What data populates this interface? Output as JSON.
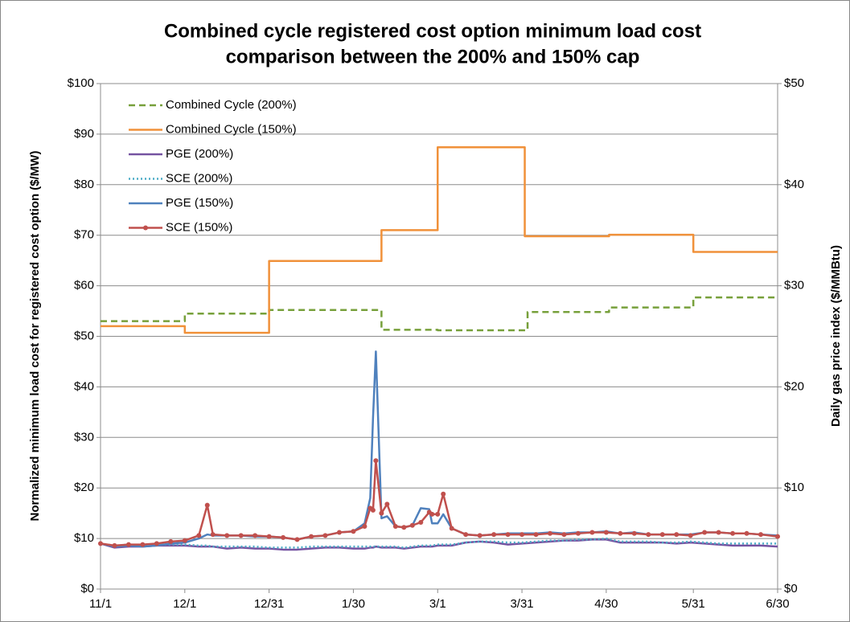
{
  "chart_data": {
    "type": "line",
    "title": [
      "Combined cycle registered cost option minimum load cost",
      "comparison between the 200% and 150% cap"
    ],
    "y_label": "Normalized minimum load cost for registered cost option ($/MW)",
    "y2_label": "Daily gas price index ($/MMBtu)",
    "xlim": [
      0,
      241
    ],
    "xticks": [
      {
        "value": 0,
        "label": "11/1"
      },
      {
        "value": 30,
        "label": "12/1"
      },
      {
        "value": 60,
        "label": "12/31"
      },
      {
        "value": 90,
        "label": "1/30"
      },
      {
        "value": 120,
        "label": "3/1"
      },
      {
        "value": 150,
        "label": "3/31"
      },
      {
        "value": 180,
        "label": "4/30"
      },
      {
        "value": 211,
        "label": "5/31"
      },
      {
        "value": 241,
        "label": "6/30"
      }
    ],
    "ylim": [
      0,
      100
    ],
    "yticks": [
      {
        "value": 0,
        "label": "$0"
      },
      {
        "value": 10,
        "label": "$10"
      },
      {
        "value": 20,
        "label": "$20"
      },
      {
        "value": 30,
        "label": "$30"
      },
      {
        "value": 40,
        "label": "$40"
      },
      {
        "value": 50,
        "label": "$50"
      },
      {
        "value": 60,
        "label": "$60"
      },
      {
        "value": 70,
        "label": "$70"
      },
      {
        "value": 80,
        "label": "$80"
      },
      {
        "value": 90,
        "label": "$90"
      },
      {
        "value": 100,
        "label": "$100"
      }
    ],
    "y2lim": [
      0,
      50
    ],
    "y2ticks": [
      {
        "value": 0,
        "label": "$0"
      },
      {
        "value": 10,
        "label": "$10"
      },
      {
        "value": 20,
        "label": "$20"
      },
      {
        "value": 30,
        "label": "$30"
      },
      {
        "value": 40,
        "label": "$40"
      },
      {
        "value": 50,
        "label": "$50"
      }
    ],
    "grid": true,
    "legend": "top-left",
    "series": [
      {
        "name": "Combined Cycle (200%)",
        "color": "#77a03b",
        "style": "dashed",
        "x": [
          0,
          30,
          30,
          60,
          60,
          100,
          100,
          120,
          120,
          152,
          152,
          181,
          181,
          211,
          211,
          241
        ],
        "values": [
          53,
          53,
          54.5,
          54.5,
          55.2,
          55.2,
          51.3,
          51.3,
          51.2,
          51.2,
          54.8,
          54.8,
          55.7,
          55.7,
          57.7,
          57.7
        ]
      },
      {
        "name": "Combined Cycle (150%)",
        "color": "#f0913a",
        "style": "solid",
        "x": [
          0,
          30,
          30,
          60,
          60,
          100,
          100,
          120,
          120,
          151,
          151,
          181,
          181,
          211,
          211,
          241
        ],
        "values": [
          52,
          52,
          50.7,
          50.7,
          64.9,
          64.9,
          71,
          71,
          87.4,
          87.4,
          69.8,
          69.8,
          70.1,
          70.1,
          66.7,
          66.7
        ]
      },
      {
        "name": "PGE (200%)",
        "color": "#7553a1",
        "style": "solid",
        "axis": "y2",
        "x": [
          0,
          5,
          10,
          15,
          20,
          25,
          30,
          35,
          38,
          40,
          45,
          50,
          55,
          60,
          65,
          70,
          75,
          80,
          85,
          90,
          94,
          96,
          97,
          98,
          100,
          102,
          105,
          108,
          111,
          114,
          117,
          118,
          120,
          122,
          125,
          130,
          135,
          140,
          145,
          150,
          155,
          160,
          165,
          170,
          175,
          180,
          185,
          190,
          195,
          200,
          205,
          210,
          215,
          220,
          225,
          230,
          235,
          241
        ],
        "values": [
          4.5,
          4.1,
          4.2,
          4.2,
          4.3,
          4.3,
          4.3,
          4.2,
          4.2,
          4.2,
          4.0,
          4.1,
          4.0,
          4.0,
          3.9,
          3.9,
          4.0,
          4.1,
          4.1,
          4.0,
          4.0,
          4.1,
          4.1,
          4.2,
          4.1,
          4.1,
          4.1,
          4.0,
          4.1,
          4.2,
          4.2,
          4.2,
          4.3,
          4.3,
          4.3,
          4.6,
          4.7,
          4.6,
          4.4,
          4.5,
          4.6,
          4.7,
          4.8,
          4.8,
          4.9,
          4.9,
          4.6,
          4.6,
          4.6,
          4.6,
          4.5,
          4.6,
          4.5,
          4.4,
          4.3,
          4.3,
          4.3,
          4.2
        ]
      },
      {
        "name": "SCE (200%)",
        "color": "#4bacc6",
        "style": "dotted",
        "axis": "y2",
        "x": [
          0,
          5,
          10,
          15,
          20,
          25,
          30,
          35,
          38,
          40,
          45,
          50,
          55,
          60,
          65,
          70,
          75,
          80,
          85,
          90,
          94,
          96,
          97,
          98,
          100,
          102,
          105,
          108,
          111,
          114,
          117,
          118,
          120,
          122,
          125,
          130,
          135,
          140,
          145,
          150,
          155,
          160,
          165,
          170,
          175,
          180,
          185,
          190,
          195,
          200,
          205,
          210,
          215,
          220,
          225,
          230,
          235,
          241
        ],
        "values": [
          4.5,
          4.3,
          4.4,
          4.3,
          4.4,
          4.4,
          4.4,
          4.3,
          4.3,
          4.2,
          4.2,
          4.2,
          4.2,
          4.1,
          4.1,
          4.1,
          4.2,
          4.2,
          4.2,
          4.2,
          4.2,
          4.2,
          4.2,
          4.2,
          4.2,
          4.2,
          4.2,
          4.1,
          4.2,
          4.3,
          4.3,
          4.3,
          4.4,
          4.4,
          4.4,
          4.6,
          4.7,
          4.7,
          4.6,
          4.6,
          4.7,
          4.8,
          4.8,
          4.9,
          4.9,
          5.0,
          4.7,
          4.7,
          4.7,
          4.6,
          4.6,
          4.7,
          4.6,
          4.5,
          4.5,
          4.5,
          4.5,
          4.5
        ]
      },
      {
        "name": "PGE (150%)",
        "color": "#4f81bd",
        "style": "solid",
        "axis": "y2",
        "x": [
          0,
          5,
          10,
          15,
          20,
          25,
          30,
          35,
          38,
          40,
          45,
          50,
          55,
          60,
          65,
          70,
          75,
          80,
          85,
          90,
          94,
          96,
          97,
          98,
          100,
          102,
          105,
          108,
          111,
          114,
          117,
          118,
          120,
          122,
          125,
          130,
          135,
          140,
          145,
          150,
          155,
          160,
          165,
          170,
          175,
          180,
          185,
          190,
          195,
          200,
          205,
          210,
          215,
          220,
          225,
          230,
          235,
          241
        ],
        "values": [
          4.5,
          4.2,
          4.3,
          4.2,
          4.3,
          4.5,
          4.6,
          5.0,
          5.4,
          5.3,
          5.3,
          5.3,
          5.2,
          5.2,
          5.1,
          4.9,
          5.2,
          5.3,
          5.6,
          5.7,
          6.5,
          9,
          17,
          23.5,
          7.0,
          7.2,
          6.2,
          6.1,
          6.3,
          8.0,
          7.9,
          6.5,
          6.5,
          7.4,
          6.0,
          5.4,
          5.3,
          5.4,
          5.5,
          5.5,
          5.5,
          5.6,
          5.5,
          5.6,
          5.6,
          5.7,
          5.5,
          5.6,
          5.4,
          5.4,
          5.4,
          5.4,
          5.6,
          5.6,
          5.5,
          5.5,
          5.4,
          5.3
        ]
      },
      {
        "name": "SCE (150%)",
        "color": "#c0504d",
        "style": "solid",
        "marker": "circle",
        "axis": "y2",
        "x": [
          0,
          5,
          10,
          15,
          20,
          25,
          30,
          35,
          38,
          40,
          45,
          50,
          55,
          60,
          65,
          70,
          75,
          80,
          85,
          90,
          94,
          96,
          97,
          98,
          100,
          102,
          105,
          108,
          111,
          114,
          117,
          118,
          120,
          122,
          125,
          130,
          135,
          140,
          145,
          150,
          155,
          160,
          165,
          170,
          175,
          180,
          185,
          190,
          195,
          200,
          205,
          210,
          215,
          220,
          225,
          230,
          235,
          241
        ],
        "values": [
          4.5,
          4.3,
          4.4,
          4.4,
          4.5,
          4.7,
          4.8,
          5.3,
          8.3,
          5.4,
          5.3,
          5.3,
          5.3,
          5.2,
          5.1,
          4.9,
          5.2,
          5.3,
          5.6,
          5.7,
          6.2,
          8.0,
          7.8,
          12.7,
          7.5,
          8.4,
          6.2,
          6.1,
          6.3,
          6.6,
          7.6,
          7.4,
          7.4,
          9.4,
          6.0,
          5.4,
          5.3,
          5.4,
          5.4,
          5.4,
          5.4,
          5.5,
          5.4,
          5.5,
          5.6,
          5.6,
          5.5,
          5.5,
          5.4,
          5.4,
          5.4,
          5.3,
          5.6,
          5.6,
          5.5,
          5.5,
          5.4,
          5.2
        ]
      }
    ]
  }
}
